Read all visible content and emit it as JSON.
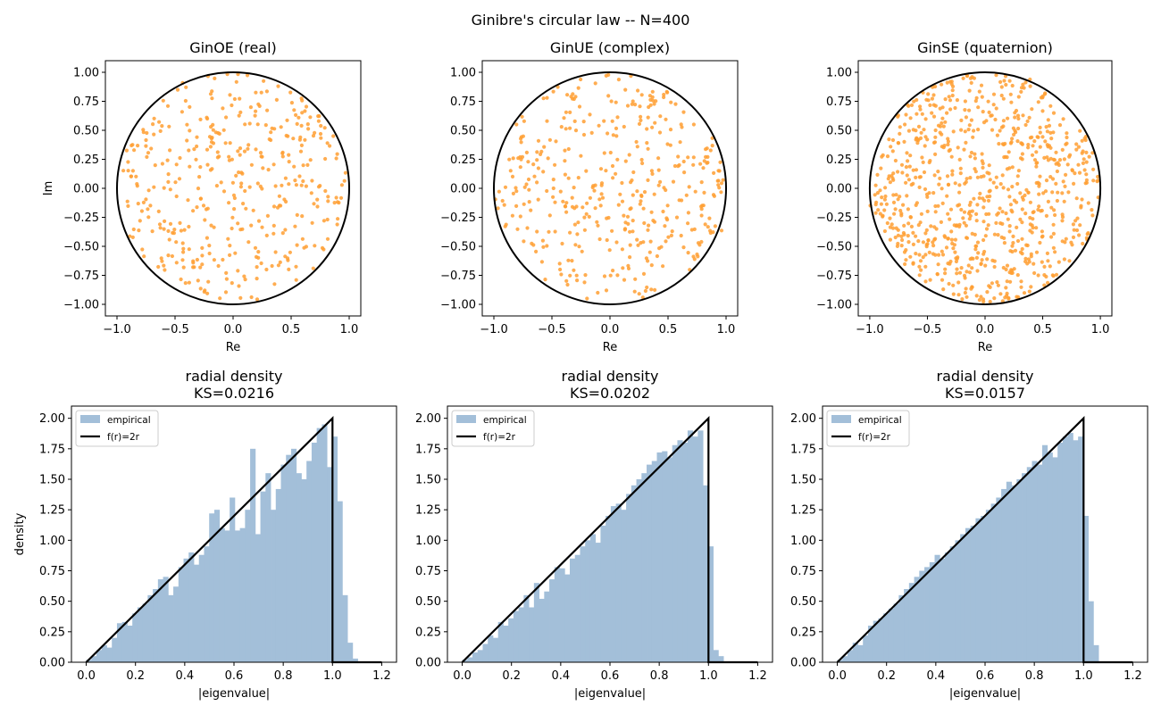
{
  "figure": {
    "suptitle": "Ginibre's circular law -- N=400"
  },
  "colors": {
    "points": "#ff9f33",
    "hist": "#a3bfd9",
    "line": "#000000"
  },
  "chart_data": [
    {
      "type": "scatter",
      "title": "GinOE (real)",
      "xlabel": "Re",
      "ylabel": "Im",
      "xlim": [
        -1.1,
        1.1
      ],
      "ylim": [
        -1.1,
        1.1
      ],
      "xticks": [
        -1.0,
        -0.5,
        0.0,
        0.5,
        1.0
      ],
      "yticks": [
        -1.0,
        -0.75,
        -0.5,
        -0.25,
        0.0,
        0.25,
        0.5,
        0.75,
        1.0
      ],
      "reference": "unit circle",
      "n_points": 400,
      "seed": 11,
      "max_radius": 1.04
    },
    {
      "type": "scatter",
      "title": "GinUE (complex)",
      "xlabel": "Re",
      "ylabel": "",
      "xlim": [
        -1.1,
        1.1
      ],
      "ylim": [
        -1.1,
        1.1
      ],
      "xticks": [
        -1.0,
        -0.5,
        0.0,
        0.5,
        1.0
      ],
      "yticks": [
        -1.0,
        -0.75,
        -0.5,
        -0.25,
        0.0,
        0.25,
        0.5,
        0.75,
        1.0
      ],
      "reference": "unit circle",
      "n_points": 400,
      "seed": 23,
      "max_radius": 1.04
    },
    {
      "type": "scatter",
      "title": "GinSE (quaternion)",
      "xlabel": "Re",
      "ylabel": "",
      "xlim": [
        -1.1,
        1.1
      ],
      "ylim": [
        -1.1,
        1.1
      ],
      "xticks": [
        -1.0,
        -0.5,
        0.0,
        0.5,
        1.0
      ],
      "yticks": [
        -1.0,
        -0.75,
        -0.5,
        -0.25,
        0.0,
        0.25,
        0.5,
        0.75,
        1.0
      ],
      "reference": "unit circle",
      "n_points": 800,
      "seed": 37,
      "max_radius": 1.03
    },
    {
      "type": "bar",
      "title": "radial density",
      "subtitle": "KS=0.0216",
      "xlabel": "|eigenvalue|",
      "ylabel": "density",
      "xlim": [
        -0.06,
        1.26
      ],
      "ylim": [
        0,
        2.1
      ],
      "xticks": [
        0.0,
        0.2,
        0.4,
        0.6,
        0.8,
        1.0,
        1.2
      ],
      "yticks": [
        0.0,
        0.25,
        0.5,
        0.75,
        1.0,
        1.25,
        1.5,
        1.75,
        2.0
      ],
      "legend": {
        "placement": "top-left",
        "entries": [
          "empirical",
          "f(r)=2r"
        ]
      },
      "bin_width": 0.0208,
      "bin_start": 0.0,
      "values": [
        0.02,
        0.05,
        0.1,
        0.14,
        0.12,
        0.2,
        0.32,
        0.33,
        0.3,
        0.4,
        0.45,
        0.48,
        0.55,
        0.6,
        0.68,
        0.7,
        0.55,
        0.62,
        0.78,
        0.85,
        0.9,
        0.8,
        0.88,
        0.95,
        1.22,
        1.25,
        1.1,
        1.08,
        1.35,
        1.08,
        1.1,
        1.25,
        1.75,
        1.05,
        1.4,
        1.55,
        1.25,
        1.42,
        1.62,
        1.7,
        1.75,
        1.55,
        1.5,
        1.65,
        1.8,
        1.92,
        1.95,
        1.6,
        1.85,
        1.32,
        0.55,
        0.16,
        0.03
      ],
      "series": [
        {
          "name": "f(r)=2r",
          "x": [
            0,
            1,
            1,
            1.2
          ],
          "y": [
            0,
            2,
            0,
            0
          ]
        }
      ]
    },
    {
      "type": "bar",
      "title": "radial density",
      "subtitle": "KS=0.0202",
      "xlabel": "|eigenvalue|",
      "ylabel": "",
      "xlim": [
        -0.06,
        1.26
      ],
      "ylim": [
        0,
        2.1
      ],
      "xticks": [
        0.0,
        0.2,
        0.4,
        0.6,
        0.8,
        1.0,
        1.2
      ],
      "yticks": [
        0.0,
        0.25,
        0.5,
        0.75,
        1.0,
        1.25,
        1.5,
        1.75,
        2.0
      ],
      "legend": {
        "placement": "top-left",
        "entries": [
          "empirical",
          "f(r)=2r"
        ]
      },
      "bin_width": 0.0208,
      "bin_start": 0.0,
      "values": [
        0.02,
        0.04,
        0.08,
        0.1,
        0.15,
        0.22,
        0.2,
        0.33,
        0.3,
        0.36,
        0.42,
        0.45,
        0.55,
        0.45,
        0.65,
        0.52,
        0.58,
        0.68,
        0.78,
        0.77,
        0.72,
        0.85,
        0.88,
        0.95,
        1.0,
        1.05,
        0.98,
        1.12,
        1.2,
        1.28,
        1.3,
        1.25,
        1.38,
        1.45,
        1.5,
        1.55,
        1.62,
        1.65,
        1.72,
        1.73,
        1.68,
        1.78,
        1.82,
        1.8,
        1.9,
        1.85,
        1.9,
        1.45,
        0.95,
        0.1,
        0.05
      ],
      "series": [
        {
          "name": "f(r)=2r",
          "x": [
            0,
            1,
            1,
            1.2
          ],
          "y": [
            0,
            2,
            0,
            0
          ]
        }
      ]
    },
    {
      "type": "bar",
      "title": "radial density",
      "subtitle": "KS=0.0157",
      "xlabel": "|eigenvalue|",
      "ylabel": "",
      "xlim": [
        -0.06,
        1.26
      ],
      "ylim": [
        0,
        2.1
      ],
      "xticks": [
        0.0,
        0.2,
        0.4,
        0.6,
        0.8,
        1.0,
        1.2
      ],
      "yticks": [
        0.0,
        0.25,
        0.5,
        0.75,
        1.0,
        1.25,
        1.5,
        1.75,
        2.0
      ],
      "legend": {
        "placement": "top-left",
        "entries": [
          "empirical",
          "f(r)=2r"
        ]
      },
      "bin_width": 0.0208,
      "bin_start": 0.0,
      "values": [
        0.02,
        0.05,
        0.1,
        0.16,
        0.14,
        0.22,
        0.3,
        0.34,
        0.36,
        0.4,
        0.44,
        0.48,
        0.55,
        0.6,
        0.65,
        0.7,
        0.75,
        0.78,
        0.82,
        0.88,
        0.85,
        0.9,
        0.95,
        1.0,
        1.05,
        1.1,
        1.12,
        1.18,
        1.2,
        1.25,
        1.3,
        1.35,
        1.42,
        1.48,
        1.45,
        1.5,
        1.55,
        1.6,
        1.65,
        1.62,
        1.78,
        1.72,
        1.68,
        1.8,
        1.85,
        1.88,
        1.82,
        1.85,
        1.2,
        0.5,
        0.14
      ],
      "series": [
        {
          "name": "f(r)=2r",
          "x": [
            0,
            1,
            1,
            1.2
          ],
          "y": [
            0,
            2,
            0,
            0
          ]
        }
      ]
    }
  ]
}
